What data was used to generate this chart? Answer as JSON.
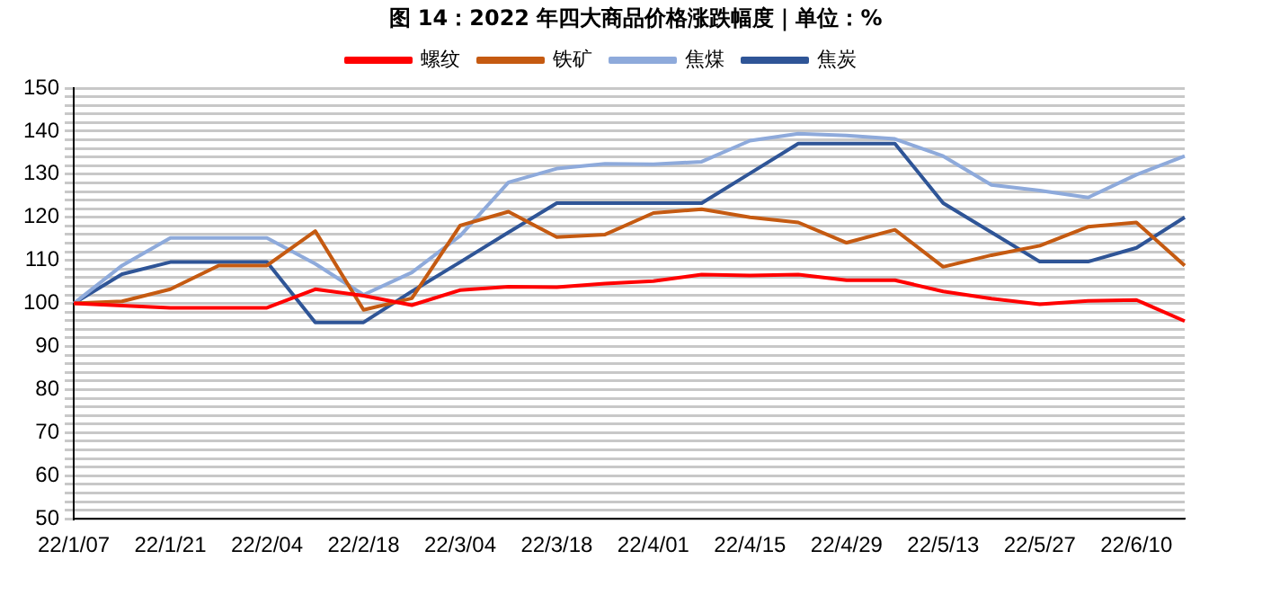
{
  "chart_data": {
    "type": "line",
    "title": "图 14：2022 年四大商品价格涨跌幅度｜单位：%",
    "categories": [
      "22/1/07",
      null,
      "22/1/21",
      null,
      "22/2/04",
      null,
      "22/2/18",
      null,
      "22/3/04",
      null,
      "22/3/18",
      null,
      "22/4/01",
      null,
      "22/4/15",
      null,
      "22/4/29",
      null,
      "22/5/13",
      null,
      "22/5/27",
      null,
      "22/6/10",
      null
    ],
    "series": [
      {
        "name": "螺纹",
        "color": "#ff0000",
        "values": [
          100,
          99.5,
          99,
          99,
          99,
          103.3,
          101.8,
          99.6,
          103.1,
          103.9,
          103.8,
          104.6,
          105.2,
          106.7,
          106.5,
          106.7,
          105.4,
          105.4,
          102.8,
          101.1,
          99.8,
          100.6,
          100.8,
          95.9
        ]
      },
      {
        "name": "铁矿",
        "color": "#c55a11",
        "values": [
          100,
          100.5,
          103.3,
          108.8,
          108.8,
          116.8,
          98.5,
          101.2,
          118.1,
          121.3,
          115.4,
          116,
          121,
          121.9,
          120,
          118.8,
          114.1,
          117.1,
          108.5,
          111.2,
          113.4,
          117.8,
          118.8,
          108.8
        ]
      },
      {
        "name": "焦煤",
        "color": "#8eaadb",
        "values": [
          100,
          108.8,
          115.2,
          115.2,
          115.2,
          109.2,
          102,
          107.2,
          115.7,
          128.1,
          131.3,
          132.4,
          132.3,
          132.9,
          137.8,
          139.4,
          139,
          138.2,
          134.2,
          127.5,
          126.2,
          124.6,
          129.9,
          134.2
        ]
      },
      {
        "name": "焦炭",
        "color": "#2f5597",
        "values": [
          100,
          106.8,
          109.6,
          109.6,
          109.6,
          95.6,
          95.6,
          102.8,
          109.6,
          116.5,
          123.3,
          123.3,
          123.3,
          123.3,
          130.2,
          137.1,
          137.1,
          137.1,
          123.3,
          116.5,
          109.7,
          109.7,
          112.9,
          120
        ]
      }
    ],
    "ylim": [
      50,
      150
    ],
    "yticks": [
      50,
      {
        "value": 52,
        "label": null
      },
      {
        "value": 54,
        "label": null
      },
      {
        "value": 56,
        "label": null
      },
      {
        "value": 58,
        "label": null
      },
      60,
      {
        "value": 62,
        "label": null
      },
      {
        "value": 64,
        "label": null
      },
      {
        "value": 66,
        "label": null
      },
      {
        "value": 68,
        "label": null
      },
      70,
      {
        "value": 72,
        "label": null
      },
      {
        "value": 74,
        "label": null
      },
      {
        "value": 76,
        "label": null
      },
      {
        "value": 78,
        "label": null
      },
      80,
      {
        "value": 82,
        "label": null
      },
      {
        "value": 84,
        "label": null
      },
      {
        "value": 86,
        "label": null
      },
      {
        "value": 88,
        "label": null
      },
      90,
      {
        "value": 92,
        "label": null
      },
      {
        "value": 94,
        "label": null
      },
      {
        "value": 96,
        "label": null
      },
      {
        "value": 98,
        "label": null
      },
      100,
      {
        "value": 102,
        "label": null
      },
      {
        "value": 104,
        "label": null
      },
      {
        "value": 106,
        "label": null
      },
      {
        "value": 108,
        "label": null
      },
      110,
      {
        "value": 112,
        "label": null
      },
      {
        "value": 114,
        "label": null
      },
      {
        "value": 116,
        "label": null
      },
      {
        "value": 118,
        "label": null
      },
      120,
      {
        "value": 122,
        "label": null
      },
      {
        "value": 124,
        "label": null
      },
      {
        "value": 126,
        "label": null
      },
      {
        "value": 128,
        "label": null
      },
      130,
      {
        "value": 132,
        "label": null
      },
      {
        "value": 134,
        "label": null
      },
      {
        "value": 136,
        "label": null
      },
      {
        "value": 138,
        "label": null
      },
      140,
      {
        "value": 142,
        "label": null
      },
      {
        "value": 144,
        "label": null
      },
      {
        "value": 146,
        "label": null
      },
      {
        "value": 148,
        "label": null
      },
      150
    ],
    "grid": "y",
    "legend": "top",
    "marker": "none",
    "line_style": "solid"
  }
}
